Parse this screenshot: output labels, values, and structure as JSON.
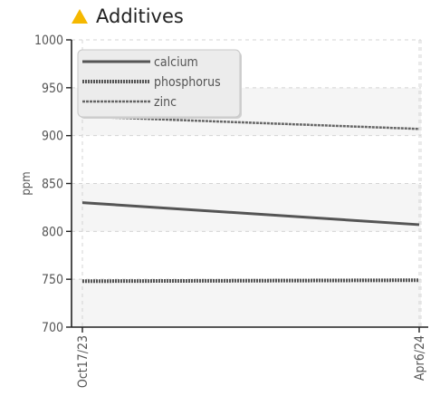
{
  "chart_data": {
    "type": "line",
    "title": "Additives",
    "title_icon": "warning-triangle-icon",
    "title_icon_color": "#f5b800",
    "xlabel": "",
    "ylabel": "ppm",
    "xtick_labels": [
      "Oct17/23",
      "Apr6/24"
    ],
    "x": [
      "Oct17/23",
      "Apr6/24"
    ],
    "ylim": [
      700,
      1000
    ],
    "yticks": [
      700,
      750,
      800,
      850,
      900,
      950,
      1000
    ],
    "grid": true,
    "legend_position": "top-left",
    "series": [
      {
        "name": "calcium",
        "style": "solid",
        "color": "#555555",
        "values": [
          830,
          807
        ]
      },
      {
        "name": "phosphorus",
        "style": "dashed-thick",
        "color": "#555555",
        "values": [
          748,
          749
        ]
      },
      {
        "name": "zinc",
        "style": "dashed-thin",
        "color": "#666666",
        "values": [
          920,
          907
        ]
      }
    ]
  }
}
